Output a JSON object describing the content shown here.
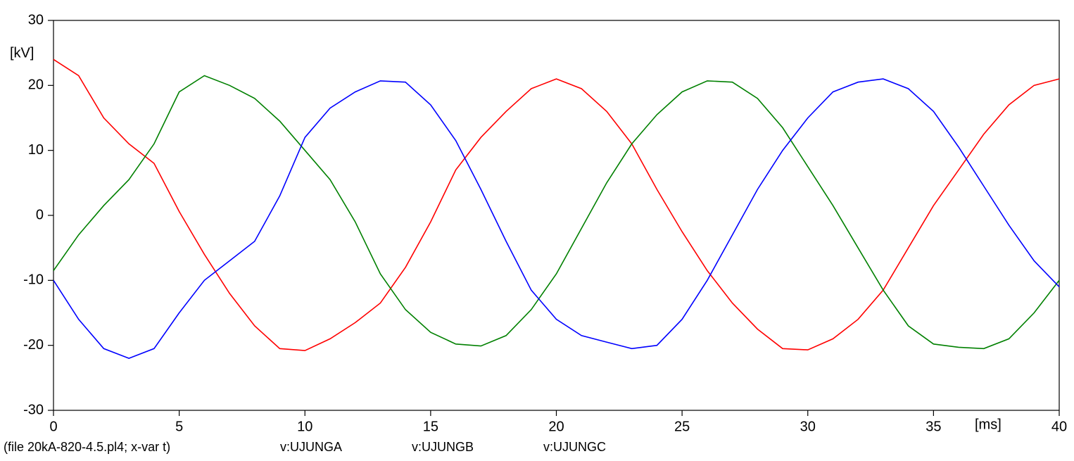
{
  "chart_data": {
    "type": "line",
    "y_label": "[kV]",
    "x_label": "[ms]",
    "note": "(file 20kA-820-4.5.pl4; x-var t)",
    "x": [
      0,
      1,
      2,
      3,
      4,
      5,
      6,
      7,
      8,
      9,
      10,
      11,
      12,
      13,
      14,
      15,
      16,
      17,
      18,
      19,
      20,
      21,
      22,
      23,
      24,
      25,
      26,
      27,
      28,
      29,
      30,
      31,
      32,
      33,
      34,
      35,
      36,
      37,
      38,
      39,
      40
    ],
    "series": [
      {
        "name": "v:UJUNGA",
        "color": "#ff0000",
        "values": [
          24,
          21.5,
          15,
          11,
          8,
          0.6,
          -6,
          -12,
          -17,
          -20.5,
          -20.8,
          -19,
          -16.5,
          -13.5,
          -8,
          -1,
          7,
          12,
          16,
          19.5,
          21,
          19.5,
          16,
          11,
          4,
          -2.5,
          -8.5,
          -13.5,
          -17.5,
          -20.5,
          -20.7,
          -19,
          -16,
          -11.5,
          -5,
          1.5,
          7,
          12.5,
          17,
          20,
          21
        ]
      },
      {
        "name": "v:UJUNGB",
        "color": "#008000",
        "values": [
          -8.5,
          -3,
          1.5,
          5.5,
          11,
          19,
          21.5,
          20,
          18,
          14.5,
          10,
          5.5,
          -1,
          -9,
          -14.5,
          -18,
          -19.8,
          -20.1,
          -18.5,
          -14.5,
          -9,
          -2,
          5,
          11,
          15.5,
          19,
          20.7,
          20.5,
          18,
          13.5,
          7.5,
          1.5,
          -5,
          -11.5,
          -17,
          -19.8,
          -20.3,
          -20.5,
          -19,
          -15,
          -10
        ]
      },
      {
        "name": "v:UJUNGC",
        "color": "#0000ff",
        "values": [
          -10,
          -16,
          -20.5,
          -22,
          -20.5,
          -15,
          -10,
          -7,
          -4,
          3,
          12,
          16.5,
          19,
          20.7,
          20.5,
          17,
          11.5,
          4,
          -4,
          -11.5,
          -16,
          -18.5,
          -19.5,
          -20.5,
          -20,
          -16,
          -10,
          -3,
          4,
          10,
          15,
          19,
          20.5,
          21,
          19.5,
          16,
          10.5,
          4.5,
          -1.5,
          -7,
          -11
        ]
      }
    ],
    "xlim": [
      0,
      40
    ],
    "xticks": [
      0,
      5,
      10,
      15,
      20,
      25,
      30,
      35,
      40
    ],
    "ylim": [
      -30,
      30
    ],
    "yticks": [
      -30,
      -20,
      -10,
      0,
      10,
      20,
      30
    ]
  }
}
